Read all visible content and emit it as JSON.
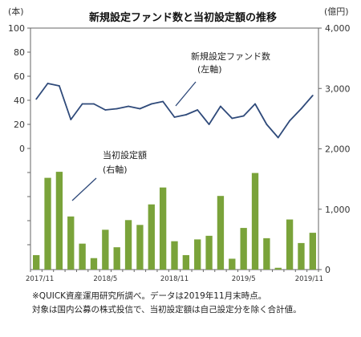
{
  "chart_data": {
    "type": "bar+line",
    "title": "新規設定ファンド数と当初設定額の推移",
    "left_unit": "(本)",
    "right_unit": "(億円)",
    "left_axis": {
      "min": 0,
      "max": 100,
      "ticks": [
        "0",
        "20",
        "40",
        "60",
        "80",
        "100"
      ]
    },
    "right_axis": {
      "min": 0,
      "max": 4000,
      "ticks": [
        "0",
        "1,000",
        "2,000",
        "3,000",
        "4,000"
      ]
    },
    "x_tick_labels": [
      "2017/11",
      "2018/5",
      "2018/11",
      "2019/5",
      "2019/11"
    ],
    "x_tick_indices": [
      0,
      6,
      12,
      18,
      24
    ],
    "months": [
      "2017/11",
      "2017/12",
      "2018/1",
      "2018/2",
      "2018/3",
      "2018/4",
      "2018/5",
      "2018/6",
      "2018/7",
      "2018/8",
      "2018/9",
      "2018/10",
      "2018/11",
      "2018/12",
      "2019/1",
      "2019/2",
      "2019/3",
      "2019/4",
      "2019/5",
      "2019/6",
      "2019/7",
      "2019/8",
      "2019/9",
      "2019/10",
      "2019/11"
    ],
    "series": [
      {
        "name": "新規設定ファンド数",
        "axis": "left",
        "type": "line",
        "color": "#2f4a7a",
        "values": [
          41,
          54,
          52,
          24,
          37,
          37,
          32,
          33,
          35,
          33,
          37,
          39,
          26,
          28,
          32,
          20,
          35,
          25,
          27,
          37,
          20,
          9,
          23,
          33,
          44
        ]
      },
      {
        "name": "当初設定額",
        "axis": "right",
        "type": "bar",
        "color": "#7aa33a",
        "values": [
          240,
          1520,
          1620,
          880,
          430,
          190,
          660,
          370,
          820,
          740,
          1080,
          1360,
          470,
          240,
          500,
          560,
          1220,
          180,
          690,
          1600,
          520,
          30,
          830,
          440,
          610
        ]
      }
    ],
    "annotations": [
      {
        "lines": [
          "新規設定ファンド数",
          "(左軸)"
        ]
      },
      {
        "lines": [
          "当初設定額",
          "(右軸)"
        ]
      }
    ]
  },
  "notes": [
    "※QUICK資産運用研究所調べ。データは2019年11月末時点。",
    "対象は国内公募の株式投信で、当初設定額は自己設定分を除く合計値。"
  ]
}
